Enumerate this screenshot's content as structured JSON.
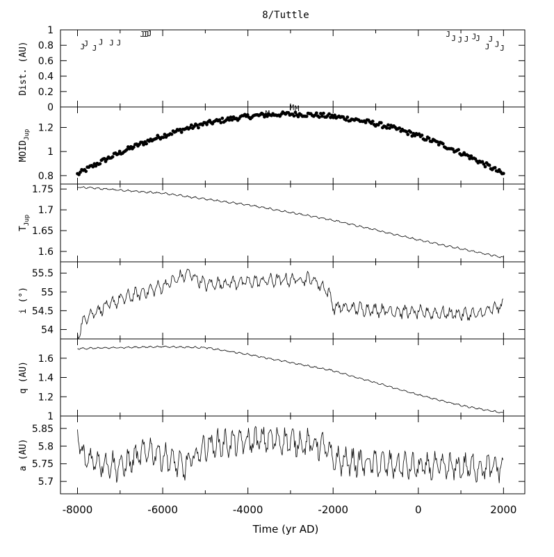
{
  "chart_data": {
    "title": "8/Tuttle",
    "xlabel": "Time (yr AD)",
    "xlim": [
      -8400,
      2500
    ],
    "xticks": [
      -8000,
      -6000,
      -4000,
      -2000,
      0,
      2000
    ],
    "panels": [
      {
        "id": "dist",
        "type": "scatter",
        "ylabel": "Dist. (AU)",
        "ylim": [
          0,
          1
        ],
        "yticks": [
          0,
          0.2,
          0.4,
          0.6,
          0.8,
          1
        ],
        "ytick_labels": [
          "0",
          "0.2",
          "0.4",
          "0.6",
          "0.8",
          "1"
        ],
        "marker": "J",
        "points": [
          [
            -7880,
            0.82
          ],
          [
            -7800,
            0.86
          ],
          [
            -7600,
            0.8
          ],
          [
            -7450,
            0.88
          ],
          [
            -7200,
            0.87
          ],
          [
            -7030,
            0.87
          ],
          [
            -6480,
            0.98
          ],
          [
            -6420,
            0.98
          ],
          [
            -6370,
            0.98
          ],
          [
            -6310,
            0.99
          ],
          [
            700,
            0.98
          ],
          [
            830,
            0.93
          ],
          [
            980,
            0.91
          ],
          [
            1130,
            0.92
          ],
          [
            1310,
            0.95
          ],
          [
            1400,
            0.93
          ],
          [
            1620,
            0.82
          ],
          [
            1700,
            0.92
          ],
          [
            1850,
            0.85
          ],
          [
            1970,
            0.8
          ]
        ]
      },
      {
        "id": "moid",
        "type": "scatter",
        "ylabel": "MOID",
        "ylabel_sub": "Jup",
        "ylim": [
          0.73,
          1.37
        ],
        "yticks": [
          0.8,
          1,
          1.2
        ],
        "ytick_labels": [
          "0.8",
          "1",
          "1.2"
        ],
        "marker": "dot",
        "trend": {
          "peak_x": -3000,
          "peak_y": 1.31,
          "scale_x": 5000,
          "drop": 0.5,
          "spread": 0.04
        },
        "labels": [
          {
            "text": "M",
            "x": -3540,
            "y": 1.33
          },
          {
            "text": "M",
            "x": -2970,
            "y": 1.38
          },
          {
            "text": "M",
            "x": -2850,
            "y": 1.37
          }
        ]
      },
      {
        "id": "tjup",
        "type": "line",
        "ylabel": "T",
        "ylabel_sub": "Jup",
        "ylim": [
          1.575,
          1.762
        ],
        "yticks": [
          1.6,
          1.65,
          1.7,
          1.75
        ],
        "ytick_labels": [
          "1.6",
          "1.65",
          "1.7",
          "1.75"
        ],
        "anchors": [
          [
            -8000,
            1.755
          ],
          [
            -6000,
            1.74
          ],
          [
            -4000,
            1.712
          ],
          [
            -2000,
            1.675
          ],
          [
            0,
            1.628
          ],
          [
            2000,
            1.585
          ]
        ]
      },
      {
        "id": "incl",
        "type": "line",
        "ylabel": "i (°)",
        "ylim": [
          53.75,
          55.8
        ],
        "yticks": [
          54,
          54.5,
          55,
          55.5
        ],
        "ytick_labels": [
          "54",
          "54.5",
          "55",
          "55.5"
        ],
        "anchors": [
          [
            -8000,
            53.85
          ],
          [
            -7800,
            54.35
          ],
          [
            -7000,
            54.8
          ],
          [
            -6000,
            55.15
          ],
          [
            -5400,
            55.5
          ],
          [
            -5000,
            55.2
          ],
          [
            -3500,
            55.3
          ],
          [
            -2500,
            55.35
          ],
          [
            -2100,
            55.0
          ],
          [
            -2000,
            54.6
          ],
          [
            0,
            54.45
          ],
          [
            1400,
            54.4
          ],
          [
            2000,
            54.65
          ]
        ]
      },
      {
        "id": "q",
        "type": "line",
        "ylabel": "q (AU)",
        "ylim": [
          1,
          1.8
        ],
        "yticks": [
          1,
          1.2,
          1.4,
          1.6
        ],
        "ytick_labels": [
          "1",
          "1.2",
          "1.4",
          "1.6"
        ],
        "anchors": [
          [
            -8000,
            1.7
          ],
          [
            -6000,
            1.72
          ],
          [
            -5000,
            1.71
          ],
          [
            -4000,
            1.64
          ],
          [
            -2000,
            1.47
          ],
          [
            0,
            1.22
          ],
          [
            1000,
            1.11
          ],
          [
            2000,
            1.03
          ]
        ]
      },
      {
        "id": "a",
        "type": "line",
        "ylabel": "a (AU)",
        "ylim": [
          5.665,
          5.885
        ],
        "yticks": [
          5.7,
          5.75,
          5.8,
          5.85
        ],
        "ytick_labels": [
          "5.7",
          "5.75",
          "5.8",
          "5.85"
        ],
        "anchors": [
          [
            -8000,
            5.85
          ],
          [
            -7900,
            5.77
          ],
          [
            -7000,
            5.74
          ],
          [
            -6300,
            5.79
          ],
          [
            -5500,
            5.74
          ],
          [
            -5000,
            5.8
          ],
          [
            -3500,
            5.82
          ],
          [
            -2200,
            5.8
          ],
          [
            -2000,
            5.76
          ],
          [
            0,
            5.74
          ],
          [
            2000,
            5.74
          ]
        ]
      }
    ]
  }
}
